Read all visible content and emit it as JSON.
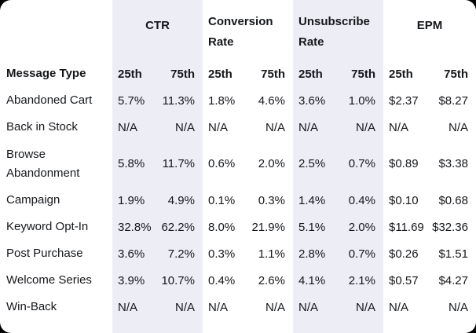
{
  "colors": {
    "page_background": "#000000",
    "card_background": "#ffffff",
    "band": "#EDEDF5",
    "text": "#15171b"
  },
  "table": {
    "row_header": "Message Type",
    "groups": [
      {
        "label": "CTR",
        "shaded": true
      },
      {
        "label": "Conversion Rate",
        "shaded": false
      },
      {
        "label": "Unsubscribe Rate",
        "shaded": true
      },
      {
        "label": "EPM",
        "shaded": false
      }
    ],
    "sub_headers": [
      "25th",
      "75th"
    ],
    "rows": [
      {
        "label": "Abandoned Cart",
        "values": [
          "5.7%",
          "11.3%",
          "1.8%",
          "4.6%",
          "3.6%",
          "1.0%",
          "$2.37",
          "$8.27"
        ]
      },
      {
        "label": "Back in Stock",
        "values": [
          "N/A",
          "N/A",
          "N/A",
          "N/A",
          "N/A",
          "N/A",
          "N/A",
          "N/A"
        ]
      },
      {
        "label": "Browse Abandonment",
        "values": [
          "5.8%",
          "11.7%",
          "0.6%",
          "2.0%",
          "2.5%",
          "0.7%",
          "$0.89",
          "$3.38"
        ]
      },
      {
        "label": "Campaign",
        "values": [
          "1.9%",
          "4.9%",
          "0.1%",
          "0.3%",
          "1.4%",
          "0.4%",
          "$0.10",
          "$0.68"
        ]
      },
      {
        "label": "Keyword Opt-In",
        "values": [
          "32.8%",
          "62.2%",
          "8.0%",
          "21.9%",
          "5.1%",
          "2.0%",
          "$11.69",
          "$32.36"
        ]
      },
      {
        "label": "Post Purchase",
        "values": [
          "3.6%",
          "7.2%",
          "0.3%",
          "1.1%",
          "2.8%",
          "0.7%",
          "$0.26",
          "$1.51"
        ]
      },
      {
        "label": "Welcome Series",
        "values": [
          "3.9%",
          "10.7%",
          "0.4%",
          "2.6%",
          "4.1%",
          "2.1%",
          "$0.57",
          "$4.27"
        ]
      },
      {
        "label": "Win-Back",
        "values": [
          "N/A",
          "N/A",
          "N/A",
          "N/A",
          "N/A",
          "N/A",
          "N/A",
          "N/A"
        ]
      }
    ]
  },
  "chart_data": {
    "type": "table",
    "title": "",
    "column_groups": [
      "CTR",
      "Conversion Rate",
      "Unsubscribe Rate",
      "EPM"
    ],
    "columns": [
      "Message Type",
      "CTR 25th",
      "CTR 75th",
      "Conversion Rate 25th",
      "Conversion Rate 75th",
      "Unsubscribe Rate 25th",
      "Unsubscribe Rate 75th",
      "EPM 25th",
      "EPM 75th"
    ],
    "rows": [
      [
        "Abandoned Cart",
        "5.7%",
        "11.3%",
        "1.8%",
        "4.6%",
        "3.6%",
        "1.0%",
        "$2.37",
        "$8.27"
      ],
      [
        "Back in Stock",
        "N/A",
        "N/A",
        "N/A",
        "N/A",
        "N/A",
        "N/A",
        "N/A",
        "N/A"
      ],
      [
        "Browse Abandonment",
        "5.8%",
        "11.7%",
        "0.6%",
        "2.0%",
        "2.5%",
        "0.7%",
        "$0.89",
        "$3.38"
      ],
      [
        "Campaign",
        "1.9%",
        "4.9%",
        "0.1%",
        "0.3%",
        "1.4%",
        "0.4%",
        "$0.10",
        "$0.68"
      ],
      [
        "Keyword Opt-In",
        "32.8%",
        "62.2%",
        "8.0%",
        "21.9%",
        "5.1%",
        "2.0%",
        "$11.69",
        "$32.36"
      ],
      [
        "Post Purchase",
        "3.6%",
        "7.2%",
        "0.3%",
        "1.1%",
        "2.8%",
        "0.7%",
        "$0.26",
        "$1.51"
      ],
      [
        "Welcome Series",
        "3.9%",
        "10.7%",
        "0.4%",
        "2.6%",
        "4.1%",
        "2.1%",
        "$0.57",
        "$4.27"
      ],
      [
        "Win-Back",
        "N/A",
        "N/A",
        "N/A",
        "N/A",
        "N/A",
        "N/A",
        "N/A",
        "N/A"
      ]
    ],
    "notes": "Shaded bands behind CTR and Unsubscribe Rate column groups; each group has 25th and 75th percentile sub-columns."
  }
}
